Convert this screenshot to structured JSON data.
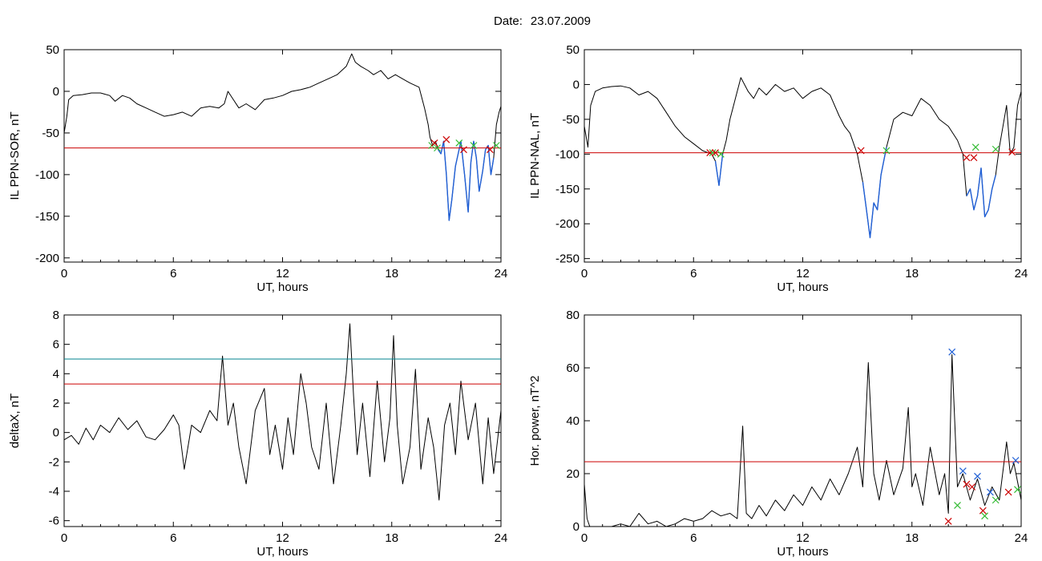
{
  "header": {
    "date_label": "Date:",
    "date_value": "23.07.2009"
  },
  "colors": {
    "data": "#000000",
    "threshold_red": "#cc0000",
    "threshold_cyan": "#00838f",
    "segment_blue": "#1f5fd6",
    "marker_red": "#cc0000",
    "marker_green": "#33bb33",
    "marker_blue": "#1f5fd6"
  },
  "chart_data": [
    {
      "id": "sor",
      "type": "line",
      "title": "",
      "xlabel": "UT, hours",
      "ylabel": "IL PPN-SOR, nT",
      "xlim": [
        0,
        24
      ],
      "ylim": [
        -205,
        50
      ],
      "xticks": [
        0,
        6,
        12,
        18,
        24
      ],
      "yticks": [
        50,
        0,
        -50,
        -100,
        -150,
        -200
      ],
      "threshold": -68,
      "series": [
        {
          "x": [
            0,
            0.15,
            0.25,
            0.5,
            1,
            1.5,
            2,
            2.5,
            2.8,
            3.2,
            3.6,
            4,
            4.5,
            5,
            5.5,
            6,
            6.5,
            7,
            7.5,
            8,
            8.5,
            8.8,
            9,
            9.3,
            9.6,
            10,
            10.5,
            11,
            11.5,
            12,
            12.5,
            13,
            13.5,
            14,
            14.5,
            15,
            15.5,
            15.8,
            16,
            16.3,
            16.7,
            17,
            17.4,
            17.8,
            18.2,
            18.6,
            19,
            19.5,
            19.8,
            20,
            20.1,
            20.25,
            20.4,
            20.55,
            20.7,
            20.85,
            21,
            21.15,
            21.3,
            21.5,
            21.65,
            21.8,
            22,
            22.2,
            22.35,
            22.5,
            22.65,
            22.8,
            23,
            23.15,
            23.3,
            23.45,
            23.6,
            23.75,
            23.9,
            24
          ],
          "y": [
            -50,
            -30,
            -10,
            -5,
            -4,
            -2,
            -2,
            -5,
            -12,
            -5,
            -8,
            -15,
            -20,
            -25,
            -30,
            -28,
            -25,
            -30,
            -20,
            -18,
            -20,
            -15,
            0,
            -10,
            -20,
            -15,
            -22,
            -10,
            -8,
            -5,
            0,
            2,
            5,
            10,
            15,
            20,
            30,
            45,
            35,
            30,
            25,
            20,
            25,
            15,
            20,
            15,
            10,
            5,
            -20,
            -40,
            -55,
            -65,
            -60,
            -70,
            -75,
            -60,
            -100,
            -155,
            -130,
            -90,
            -75,
            -60,
            -100,
            -145,
            -85,
            -60,
            -80,
            -120,
            -95,
            -70,
            -65,
            -100,
            -80,
            -40,
            -25,
            -18
          ]
        }
      ],
      "segments": [
        {
          "x": [
            20.55,
            20.7,
            20.85,
            21,
            21.15,
            21.3,
            21.5,
            21.65,
            21.8,
            22,
            22.2,
            22.35,
            22.5,
            22.65,
            22.8,
            23,
            23.15,
            23.3,
            23.45,
            23.6
          ],
          "y": [
            -70,
            -75,
            -60,
            -100,
            -155,
            -130,
            -90,
            -75,
            -60,
            -100,
            -145,
            -85,
            -60,
            -80,
            -120,
            -95,
            -70,
            -65,
            -100,
            -80
          ]
        }
      ],
      "markers": [
        {
          "x": 20.2,
          "y": -65,
          "color": "green"
        },
        {
          "x": 20.35,
          "y": -62,
          "color": "red"
        },
        {
          "x": 20.5,
          "y": -68,
          "color": "green"
        },
        {
          "x": 21.0,
          "y": -58,
          "color": "red"
        },
        {
          "x": 21.7,
          "y": -62,
          "color": "green"
        },
        {
          "x": 21.95,
          "y": -70,
          "color": "red"
        },
        {
          "x": 22.5,
          "y": -65,
          "color": "green"
        },
        {
          "x": 23.4,
          "y": -70,
          "color": "red"
        },
        {
          "x": 23.75,
          "y": -65,
          "color": "green"
        }
      ]
    },
    {
      "id": "nal",
      "type": "line",
      "title": "",
      "xlabel": "UT, hours",
      "ylabel": "IL PPN-NAL, nT",
      "xlim": [
        0,
        24
      ],
      "ylim": [
        -255,
        50
      ],
      "xticks": [
        0,
        6,
        12,
        18,
        24
      ],
      "yticks": [
        50,
        0,
        -50,
        -100,
        -150,
        -200,
        -250
      ],
      "threshold": -98,
      "series": [
        {
          "x": [
            0,
            0.2,
            0.35,
            0.6,
            1,
            1.5,
            2,
            2.5,
            3,
            3.5,
            4,
            4.5,
            5,
            5.5,
            6,
            6.5,
            7,
            7.2,
            7.4,
            7.6,
            7.8,
            8,
            8.3,
            8.6,
            9,
            9.3,
            9.6,
            10,
            10.5,
            11,
            11.5,
            12,
            12.5,
            13,
            13.5,
            14,
            14.3,
            14.6,
            15,
            15.3,
            15.5,
            15.7,
            15.9,
            16.1,
            16.3,
            16.6,
            17,
            17.5,
            18,
            18.5,
            19,
            19.5,
            20,
            20.5,
            20.8,
            21,
            21.2,
            21.4,
            21.6,
            21.8,
            22,
            22.2,
            22.4,
            22.6,
            22.8,
            23,
            23.2,
            23.4,
            23.6,
            23.8,
            24
          ],
          "y": [
            -60,
            -90,
            -30,
            -10,
            -5,
            -3,
            -2,
            -5,
            -15,
            -10,
            -20,
            -40,
            -60,
            -75,
            -85,
            -95,
            -100,
            -110,
            -145,
            -100,
            -80,
            -50,
            -20,
            10,
            -10,
            -20,
            -5,
            -15,
            0,
            -10,
            -5,
            -20,
            -10,
            -5,
            -15,
            -45,
            -60,
            -70,
            -100,
            -140,
            -180,
            -220,
            -170,
            -180,
            -130,
            -90,
            -50,
            -40,
            -45,
            -20,
            -30,
            -50,
            -60,
            -80,
            -100,
            -160,
            -150,
            -180,
            -160,
            -120,
            -190,
            -180,
            -150,
            -130,
            -90,
            -60,
            -30,
            -100,
            -90,
            -30,
            -10
          ]
        }
      ],
      "segments": [
        {
          "x": [
            7.2,
            7.4,
            7.6
          ],
          "y": [
            -110,
            -145,
            -100
          ]
        },
        {
          "x": [
            15.3,
            15.5,
            15.7,
            15.9,
            16.1,
            16.3,
            16.6
          ],
          "y": [
            -140,
            -180,
            -220,
            -170,
            -180,
            -130,
            -90
          ]
        },
        {
          "x": [
            21,
            21.2,
            21.4,
            21.6,
            21.8,
            22,
            22.2,
            22.4,
            22.6
          ],
          "y": [
            -160,
            -150,
            -180,
            -160,
            -120,
            -190,
            -180,
            -150,
            -130
          ]
        }
      ],
      "markers": [
        {
          "x": 6.9,
          "y": -98,
          "color": "red"
        },
        {
          "x": 7.05,
          "y": -98,
          "color": "green"
        },
        {
          "x": 7.2,
          "y": -98,
          "color": "red"
        },
        {
          "x": 7.5,
          "y": -100,
          "color": "green"
        },
        {
          "x": 15.2,
          "y": -95,
          "color": "red"
        },
        {
          "x": 16.6,
          "y": -95,
          "color": "green"
        },
        {
          "x": 21.0,
          "y": -105,
          "color": "red"
        },
        {
          "x": 21.4,
          "y": -105,
          "color": "red"
        },
        {
          "x": 21.5,
          "y": -90,
          "color": "green"
        },
        {
          "x": 22.6,
          "y": -93,
          "color": "green"
        },
        {
          "x": 23.5,
          "y": -97,
          "color": "red"
        }
      ]
    },
    {
      "id": "deltax",
      "type": "line",
      "title": "",
      "xlabel": "UT, hours",
      "ylabel": "deltaX, nT",
      "xlim": [
        0,
        24
      ],
      "ylim": [
        -6.4,
        8
      ],
      "xticks": [
        0,
        6,
        12,
        18,
        24
      ],
      "yticks": [
        8,
        6,
        4,
        2,
        0,
        -2,
        -4,
        -6
      ],
      "thresholds": [
        {
          "value": 5.0,
          "color": "cyan"
        },
        {
          "value": 3.3,
          "color": "red"
        }
      ],
      "series": [
        {
          "x": [
            0,
            0.4,
            0.8,
            1.2,
            1.6,
            2,
            2.5,
            3,
            3.5,
            4,
            4.5,
            5,
            5.5,
            6,
            6.3,
            6.6,
            7,
            7.5,
            8,
            8.4,
            8.7,
            9,
            9.3,
            9.6,
            10,
            10.5,
            11,
            11.3,
            11.6,
            12,
            12.3,
            12.6,
            13,
            13.3,
            13.6,
            14,
            14.4,
            14.8,
            15.2,
            15.5,
            15.7,
            15.9,
            16.1,
            16.4,
            16.8,
            17.2,
            17.6,
            17.9,
            18.1,
            18.3,
            18.6,
            19,
            19.3,
            19.6,
            20,
            20.3,
            20.6,
            20.9,
            21.2,
            21.5,
            21.8,
            22.2,
            22.6,
            23,
            23.3,
            23.6,
            24
          ],
          "y": [
            -0.5,
            -0.2,
            -0.8,
            0.3,
            -0.5,
            0.5,
            0.0,
            1.0,
            0.2,
            0.8,
            -0.3,
            -0.5,
            0.2,
            1.2,
            0.5,
            -2.5,
            0.5,
            0.0,
            1.5,
            0.8,
            5.2,
            0.5,
            2.0,
            -1.0,
            -3.5,
            1.5,
            3.0,
            -1.5,
            0.5,
            -2.5,
            1.0,
            -1.5,
            4.0,
            2.0,
            -1.0,
            -2.5,
            2.0,
            -3.5,
            0.5,
            4.0,
            7.4,
            2.5,
            -1.5,
            2.0,
            -3.0,
            3.5,
            -2.0,
            1.0,
            6.6,
            0.5,
            -3.5,
            -1.0,
            4.3,
            -2.5,
            1.0,
            -1.0,
            -4.6,
            0.5,
            2.0,
            -1.5,
            3.5,
            -0.5,
            2.0,
            -3.5,
            1.0,
            -2.8,
            1.5
          ]
        }
      ]
    },
    {
      "id": "power",
      "type": "line",
      "title": "",
      "xlabel": "UT, hours",
      "ylabel": "Hor. power, nT^2",
      "xlim": [
        0,
        24
      ],
      "ylim": [
        0,
        80
      ],
      "xticks": [
        0,
        6,
        12,
        18,
        24
      ],
      "yticks": [
        80,
        60,
        40,
        20,
        0
      ],
      "threshold": 24.5,
      "series": [
        {
          "x": [
            0,
            0.15,
            0.3,
            0.6,
            1,
            1.5,
            2,
            2.5,
            3,
            3.5,
            4,
            4.5,
            5,
            5.5,
            6,
            6.5,
            7,
            7.5,
            8,
            8.4,
            8.7,
            8.9,
            9.2,
            9.6,
            10,
            10.5,
            11,
            11.5,
            12,
            12.5,
            13,
            13.5,
            14,
            14.5,
            15,
            15.3,
            15.6,
            15.9,
            16.2,
            16.6,
            17,
            17.5,
            17.8,
            18.0,
            18.2,
            18.6,
            19,
            19.5,
            19.8,
            20.0,
            20.2,
            20.5,
            20.8,
            21.2,
            21.6,
            22,
            22.4,
            22.8,
            23.2,
            23.4,
            23.6,
            24
          ],
          "y": [
            16,
            3,
            0,
            0,
            0,
            0,
            1,
            0,
            5,
            1,
            2,
            0,
            1,
            3,
            2,
            3,
            6,
            4,
            5,
            3,
            38,
            5,
            3,
            8,
            4,
            10,
            6,
            12,
            8,
            15,
            10,
            18,
            12,
            20,
            30,
            15,
            62,
            20,
            10,
            25,
            12,
            22,
            45,
            15,
            20,
            8,
            30,
            12,
            20,
            5,
            65,
            15,
            20,
            10,
            18,
            8,
            15,
            10,
            32,
            20,
            24,
            10
          ]
        }
      ],
      "markers": [
        {
          "x": 20.2,
          "y": 66,
          "color": "blue"
        },
        {
          "x": 20.8,
          "y": 21,
          "color": "blue"
        },
        {
          "x": 21.6,
          "y": 19,
          "color": "blue"
        },
        {
          "x": 22.3,
          "y": 13,
          "color": "blue"
        },
        {
          "x": 23.7,
          "y": 25,
          "color": "blue"
        },
        {
          "x": 21.0,
          "y": 16,
          "color": "red"
        },
        {
          "x": 21.9,
          "y": 6,
          "color": "red"
        },
        {
          "x": 23.3,
          "y": 13,
          "color": "red"
        },
        {
          "x": 20.0,
          "y": 2,
          "color": "red"
        },
        {
          "x": 20.5,
          "y": 8,
          "color": "green"
        },
        {
          "x": 22.0,
          "y": 4,
          "color": "green"
        },
        {
          "x": 22.6,
          "y": 10,
          "color": "green"
        },
        {
          "x": 23.8,
          "y": 14,
          "color": "green"
        },
        {
          "x": 21.3,
          "y": 15,
          "color": "red"
        }
      ]
    }
  ]
}
